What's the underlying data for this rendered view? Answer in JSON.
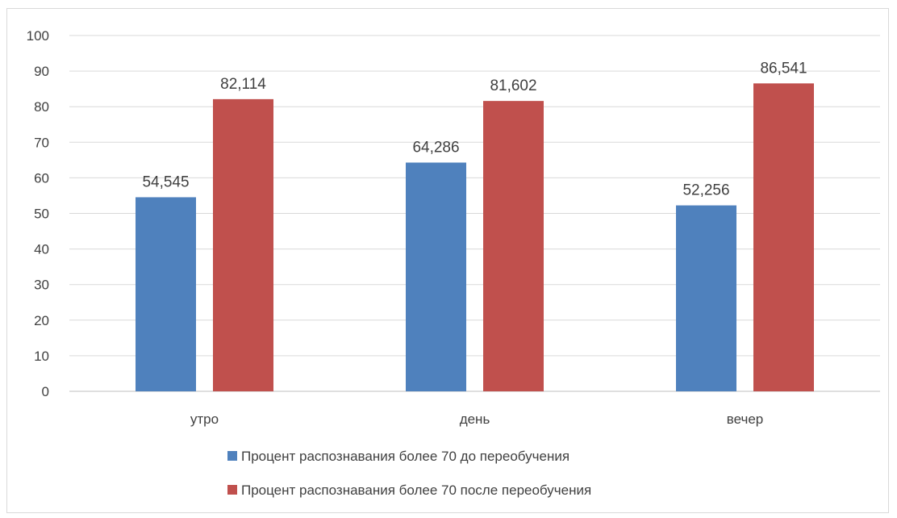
{
  "chart_data": {
    "type": "bar",
    "categories": [
      "утро",
      "день",
      "вечер"
    ],
    "series": [
      {
        "name": "Процент распознавания более 70 до переобучения",
        "values": [
          54.545,
          64.286,
          52.256
        ],
        "labels": [
          "54,545",
          "64,286",
          "52,256"
        ],
        "color": "#4f81bd"
      },
      {
        "name": "Процент распознавания более 70 после переобучения",
        "values": [
          82.114,
          81.602,
          86.541
        ],
        "labels": [
          "82,114",
          "81,602",
          "86,541"
        ],
        "color": "#c0504d"
      }
    ],
    "yticks": [
      "0",
      "10",
      "20",
      "30",
      "40",
      "50",
      "60",
      "70",
      "80",
      "90",
      "100"
    ],
    "ylim": [
      0,
      100
    ],
    "grid": true,
    "legend_position": "bottom",
    "title": "",
    "xlabel": "",
    "ylabel": ""
  }
}
